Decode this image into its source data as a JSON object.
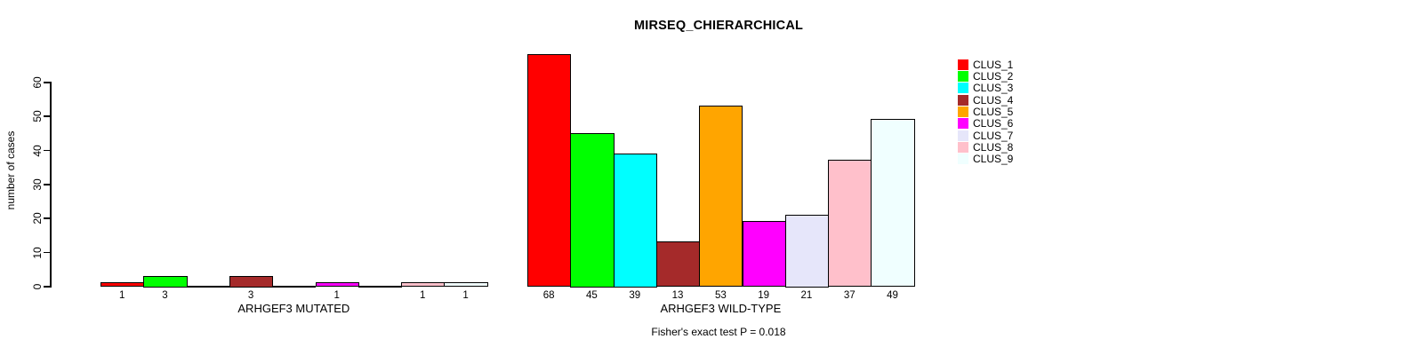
{
  "chart_data": {
    "type": "bar",
    "title": "MIRSEQ_CHIERARCHICAL",
    "ylabel": "number of cases",
    "ylim": [
      0,
      60
    ],
    "yticks": [
      0,
      10,
      20,
      30,
      40,
      50,
      60
    ],
    "grid": false,
    "legend_position": "top-right",
    "categories": [
      "ARHGEF3 MUTATED",
      "ARHGEF3 WILD-TYPE"
    ],
    "series": [
      {
        "name": "CLUS_1",
        "color": "#ff0000",
        "values": [
          1,
          68
        ]
      },
      {
        "name": "CLUS_2",
        "color": "#00ff00",
        "values": [
          3,
          45
        ]
      },
      {
        "name": "CLUS_3",
        "color": "#00ffff",
        "values": [
          0,
          39
        ]
      },
      {
        "name": "CLUS_4",
        "color": "#a52a2a",
        "values": [
          3,
          13
        ]
      },
      {
        "name": "CLUS_5",
        "color": "#ffa500",
        "values": [
          0,
          53
        ]
      },
      {
        "name": "CLUS_6",
        "color": "#ff00ff",
        "values": [
          1,
          19
        ]
      },
      {
        "name": "CLUS_7",
        "color": "#e6e6fa",
        "values": [
          0,
          21
        ]
      },
      {
        "name": "CLUS_8",
        "color": "#ffc0cb",
        "values": [
          1,
          37
        ]
      },
      {
        "name": "CLUS_9",
        "color": "#f0ffff",
        "values": [
          1,
          49
        ]
      }
    ],
    "bar_label_rule": "value shown under each non-zero bar",
    "annotation": "Fisher's exact test P = 0.018"
  }
}
